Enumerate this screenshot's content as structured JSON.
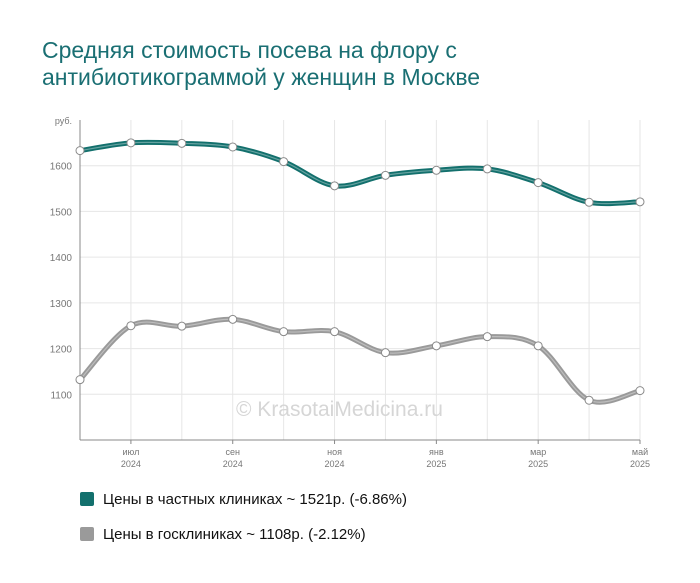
{
  "chart_data": {
    "type": "line",
    "title": "Средняя стоимость посева на флору с антибиотикограммой у женщин в Москве",
    "y_unit": "руб.",
    "ylim": [
      1000,
      1700
    ],
    "y_ticks": [
      "1100",
      "1200",
      "1300",
      "1400",
      "1500",
      "1600"
    ],
    "y_tick_values": [
      1100,
      1200,
      1300,
      1400,
      1500,
      1600
    ],
    "x_ticks": [
      {
        "month": "июл",
        "year": "2024",
        "index": 1
      },
      {
        "month": "сен",
        "year": "2024",
        "index": 3
      },
      {
        "month": "ноя",
        "year": "2024",
        "index": 5
      },
      {
        "month": "янв",
        "year": "2025",
        "index": 7
      },
      {
        "month": "мар",
        "year": "2025",
        "index": 9
      },
      {
        "month": "май",
        "year": "2025",
        "index": 11
      }
    ],
    "x": [
      "2024-06",
      "2024-07",
      "2024-08",
      "2024-09",
      "2024-10",
      "2024-11",
      "2024-12",
      "2025-01",
      "2025-02",
      "2025-03",
      "2025-04",
      "2025-05"
    ],
    "grid": true,
    "legend_position": "bottom",
    "series": [
      {
        "name": "Цены в частных клиниках ~ 1521р. (-6.86%)",
        "color": "#13706d",
        "values": [
          1633,
          1650,
          1649,
          1641,
          1609,
          1556,
          1579,
          1590,
          1593,
          1563,
          1520,
          1521
        ]
      },
      {
        "name": "Цены в госклиниках ~ 1108р. (-2.12%)",
        "color": "#9a9a9a",
        "values": [
          1132,
          1250,
          1249,
          1264,
          1237,
          1237,
          1191,
          1206,
          1226,
          1206,
          1087,
          1108
        ]
      }
    ]
  },
  "watermark": "© KrasotaiMedicina.ru"
}
